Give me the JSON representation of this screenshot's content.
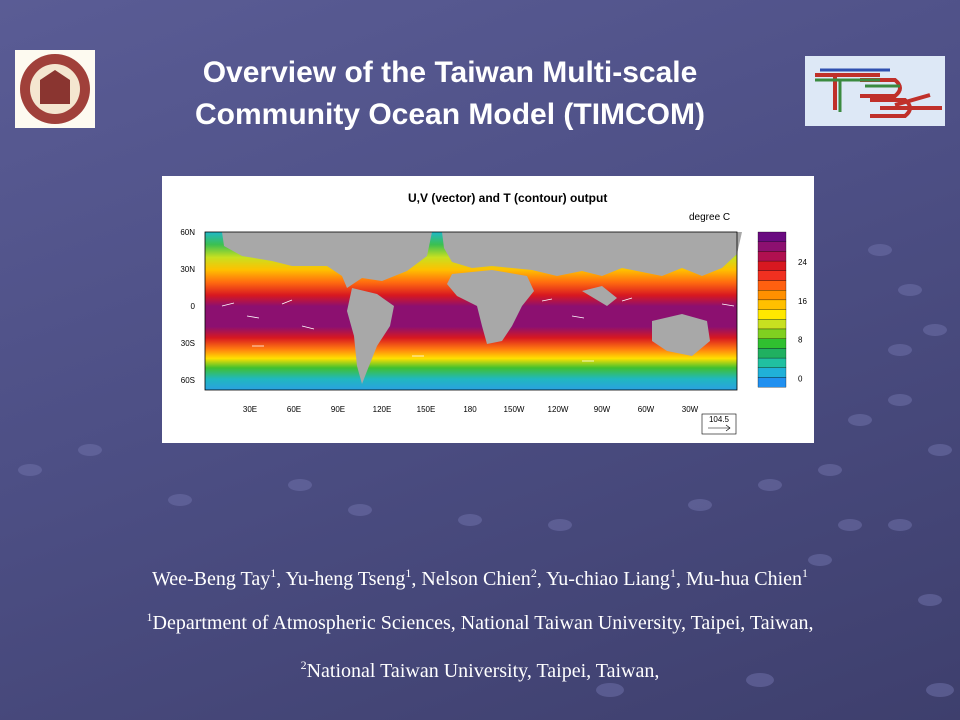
{
  "slide": {
    "title": [
      "Overview of the Taiwan Multi-scale",
      "Community Ocean Model (TIMCOM)"
    ],
    "figure": {
      "title": "U,V (vector) and T (contour) output",
      "unit": "degree C",
      "lat_labels": [
        "60N",
        "30N",
        "0",
        "30S",
        "60S"
      ],
      "lon_labels": [
        "30E",
        "60E",
        "90E",
        "120E",
        "150E",
        "180",
        "150W",
        "120W",
        "90W",
        "60W",
        "30W"
      ],
      "colorbar_labels": [
        24,
        16,
        8,
        0
      ],
      "vector_scale": "104.5"
    },
    "authors": [
      {
        "name": "Wee-Beng Tay",
        "mark": "1"
      },
      {
        "name": "Yu-heng Tseng",
        "mark": "1"
      },
      {
        "name": "Nelson Chien",
        "mark": "2"
      },
      {
        "name": "Yu-chiao Liang",
        "mark": "1"
      },
      {
        "name": "Mu-hua Chien",
        "mark": "1"
      }
    ],
    "affiliations": [
      {
        "mark": "1",
        "text": "Department of Atmospheric Sciences, National Taiwan University, Taipei, Taiwan,"
      },
      {
        "mark": "2",
        "text": "National Taiwan University, Taipei, Taiwan,"
      }
    ]
  }
}
